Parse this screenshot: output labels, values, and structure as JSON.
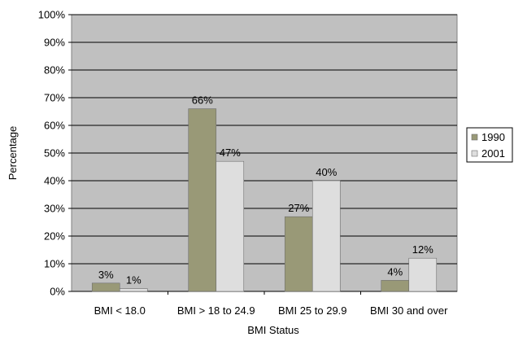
{
  "chart_data": {
    "type": "bar",
    "title": "",
    "xlabel": "BMI Status",
    "ylabel": "Percentage",
    "ylim": [
      0,
      100
    ],
    "yticks": [
      "0%",
      "10%",
      "20%",
      "30%",
      "40%",
      "50%",
      "60%",
      "70%",
      "80%",
      "90%",
      "100%"
    ],
    "categories": [
      "BMI < 18.0",
      "BMI > 18 to 24.9",
      "BMI 25 to 29.9",
      "BMI 30 and over"
    ],
    "series": [
      {
        "name": "1990",
        "values": [
          3,
          66,
          27,
          4
        ],
        "labels": [
          "3%",
          "66%",
          "27%",
          "4%"
        ],
        "color": "#999977"
      },
      {
        "name": "2001",
        "values": [
          1,
          47,
          40,
          12
        ],
        "labels": [
          "1%",
          "47%",
          "40%",
          "12%"
        ],
        "color": "#dedede"
      }
    ],
    "grid": true,
    "legend": "right",
    "plot_background": "#c0c0c0"
  }
}
